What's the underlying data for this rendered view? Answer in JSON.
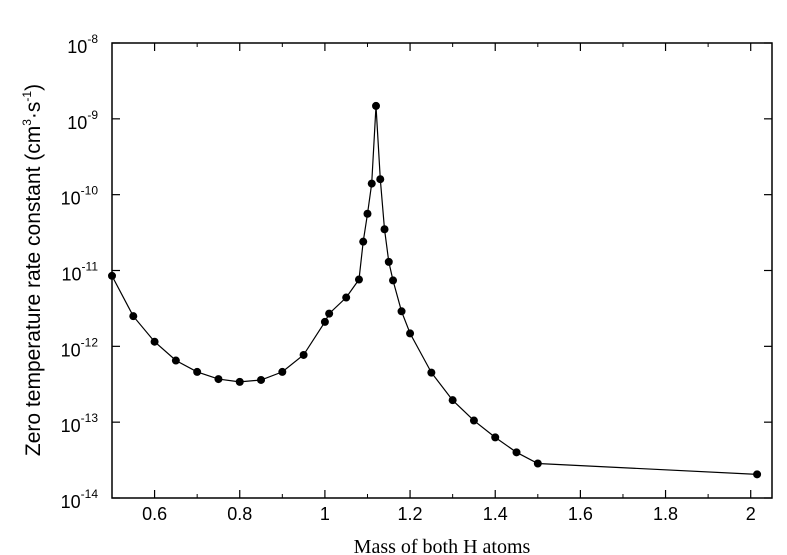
{
  "chart_data": {
    "type": "line",
    "xlabel": "Mass of both H atoms",
    "ylabel": {
      "prefix": "Zero temperature rate constant (cm",
      "exp1": "3",
      "middle": "·s",
      "exp2": "-1",
      "suffix": ")"
    },
    "xlim": [
      0.5,
      2.05
    ],
    "ylim": [
      1e-14,
      1e-08
    ],
    "y_scale": "log",
    "x_ticks": [
      {
        "value": 0.6,
        "label": "0.6"
      },
      {
        "value": 0.8,
        "label": "0.8"
      },
      {
        "value": 1.0,
        "label": "1"
      },
      {
        "value": 1.2,
        "label": "1.2"
      },
      {
        "value": 1.4,
        "label": "1.4"
      },
      {
        "value": 1.6,
        "label": "1.6"
      },
      {
        "value": 1.8,
        "label": "1.8"
      },
      {
        "value": 2.0,
        "label": "2"
      }
    ],
    "y_ticks": [
      {
        "value": 1e-14,
        "base": "10",
        "exp": "-14"
      },
      {
        "value": 1e-13,
        "base": "10",
        "exp": "-13"
      },
      {
        "value": 1e-12,
        "base": "10",
        "exp": "-12"
      },
      {
        "value": 1e-11,
        "base": "10",
        "exp": "-11"
      },
      {
        "value": 1e-10,
        "base": "10",
        "exp": "-10"
      },
      {
        "value": 1e-09,
        "base": "10",
        "exp": "-9"
      },
      {
        "value": 1e-08,
        "base": "10",
        "exp": "-8"
      }
    ],
    "grid": false,
    "series": [
      {
        "marker": "circle",
        "color": "#000000",
        "x": [
          0.5,
          0.55,
          0.6,
          0.65,
          0.7,
          0.75,
          0.8,
          0.85,
          0.9,
          0.95,
          1.0,
          1.01,
          1.05,
          1.08,
          1.09,
          1.1,
          1.11,
          1.12,
          1.13,
          1.14,
          1.15,
          1.16,
          1.18,
          1.2,
          1.25,
          1.3,
          1.35,
          1.4,
          1.45,
          1.5,
          2.015
        ],
        "y": [
          8.5e-12,
          2.5e-12,
          1.15e-12,
          6.5e-13,
          4.6e-13,
          3.7e-13,
          3.4e-13,
          3.6e-13,
          4.6e-13,
          7.7e-13,
          2.1e-12,
          2.7e-12,
          4.4e-12,
          7.6e-12,
          2.4e-11,
          5.6e-11,
          1.4e-10,
          1.48e-09,
          1.6e-10,
          3.5e-11,
          1.3e-11,
          7.4e-12,
          2.9e-12,
          1.48e-12,
          4.5e-13,
          1.95e-13,
          1.05e-13,
          6.3e-14,
          4e-14,
          2.85e-14,
          2.05e-14
        ]
      }
    ]
  }
}
